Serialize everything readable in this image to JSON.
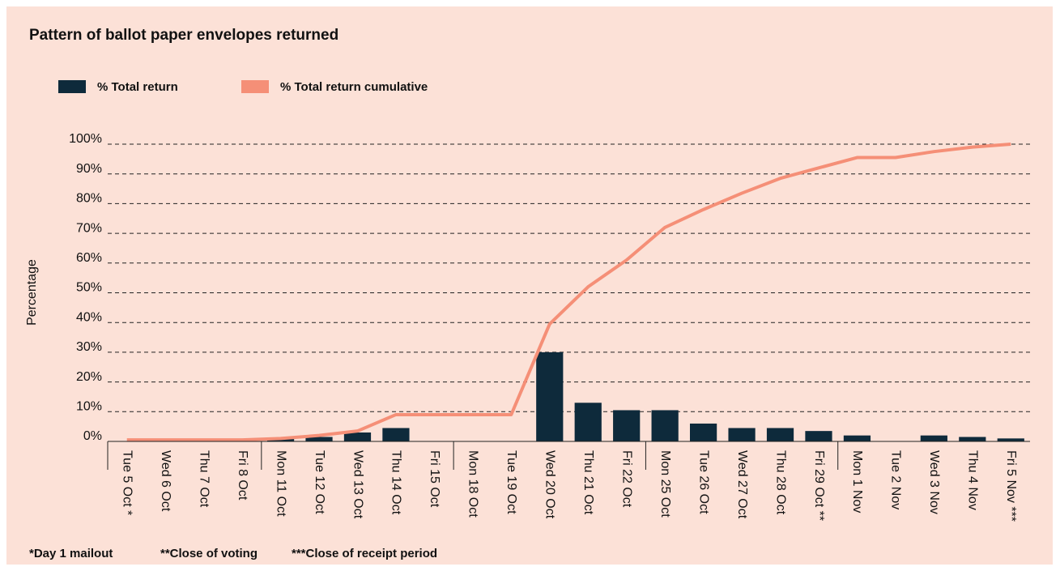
{
  "chart_data": {
    "type": "bar_line",
    "title": "Pattern of ballot paper envelopes returned",
    "y_label": "Percentage",
    "categories": [
      "Tue 5 Oct *",
      "Wed 6 Oct",
      "Thu 7 Oct",
      "Fri 8 Oct",
      "Mon 11 Oct",
      "Tue 12 Oct",
      "Wed 13 Oct",
      "Thu 14 Oct",
      "Fri 15 Oct",
      "Mon 18 Oct",
      "Tue 19 Oct",
      "Wed 20 Oct",
      "Thu 21 Oct",
      "Fri 22 Oct",
      "Mon 25 Oct",
      "Tue 26 Oct",
      "Wed 27 Oct",
      "Thu 28 Oct",
      "Fri 29 Oct **",
      "Mon 1 Nov",
      "Tue 2 Nov",
      "Wed 3 Nov",
      "Thu 4 Nov",
      "Fri 5 Nov ***"
    ],
    "series": [
      {
        "name": "% Total return",
        "type": "bar",
        "color": "#0e2a3b",
        "values": [
          0,
          0,
          0,
          0,
          1,
          1.5,
          3,
          4.5,
          0,
          0,
          0,
          30,
          13,
          10.5,
          10.5,
          6,
          4.5,
          4.5,
          3.5,
          2,
          0,
          2,
          1.5,
          1
        ]
      },
      {
        "name": "% Total return cumulative",
        "type": "line",
        "color": "#f58f77",
        "values": [
          0.5,
          0.5,
          0.5,
          0.5,
          1,
          2,
          3.5,
          9,
          9,
          9,
          9,
          39.5,
          52,
          61,
          72,
          78,
          83.5,
          88.5,
          92,
          95.5,
          95.5,
          97.5,
          99,
          100
        ]
      }
    ],
    "ylim": [
      0,
      100
    ],
    "yticks": [
      {
        "value": 0,
        "label": "0%"
      },
      {
        "value": 10,
        "label": "10%"
      },
      {
        "value": 20,
        "label": "20%"
      },
      {
        "value": 30,
        "label": "30%"
      },
      {
        "value": 40,
        "label": "40%"
      },
      {
        "value": 50,
        "label": "50%"
      },
      {
        "value": 60,
        "label": "60%"
      },
      {
        "value": 70,
        "label": "70%"
      },
      {
        "value": 80,
        "label": "80%"
      },
      {
        "value": 90,
        "label": "90%"
      },
      {
        "value": 100,
        "label": "100%"
      }
    ],
    "grid": true,
    "footnotes": [
      "*Day 1 mailout",
      "**Close of voting",
      "***Close of receipt period"
    ]
  }
}
